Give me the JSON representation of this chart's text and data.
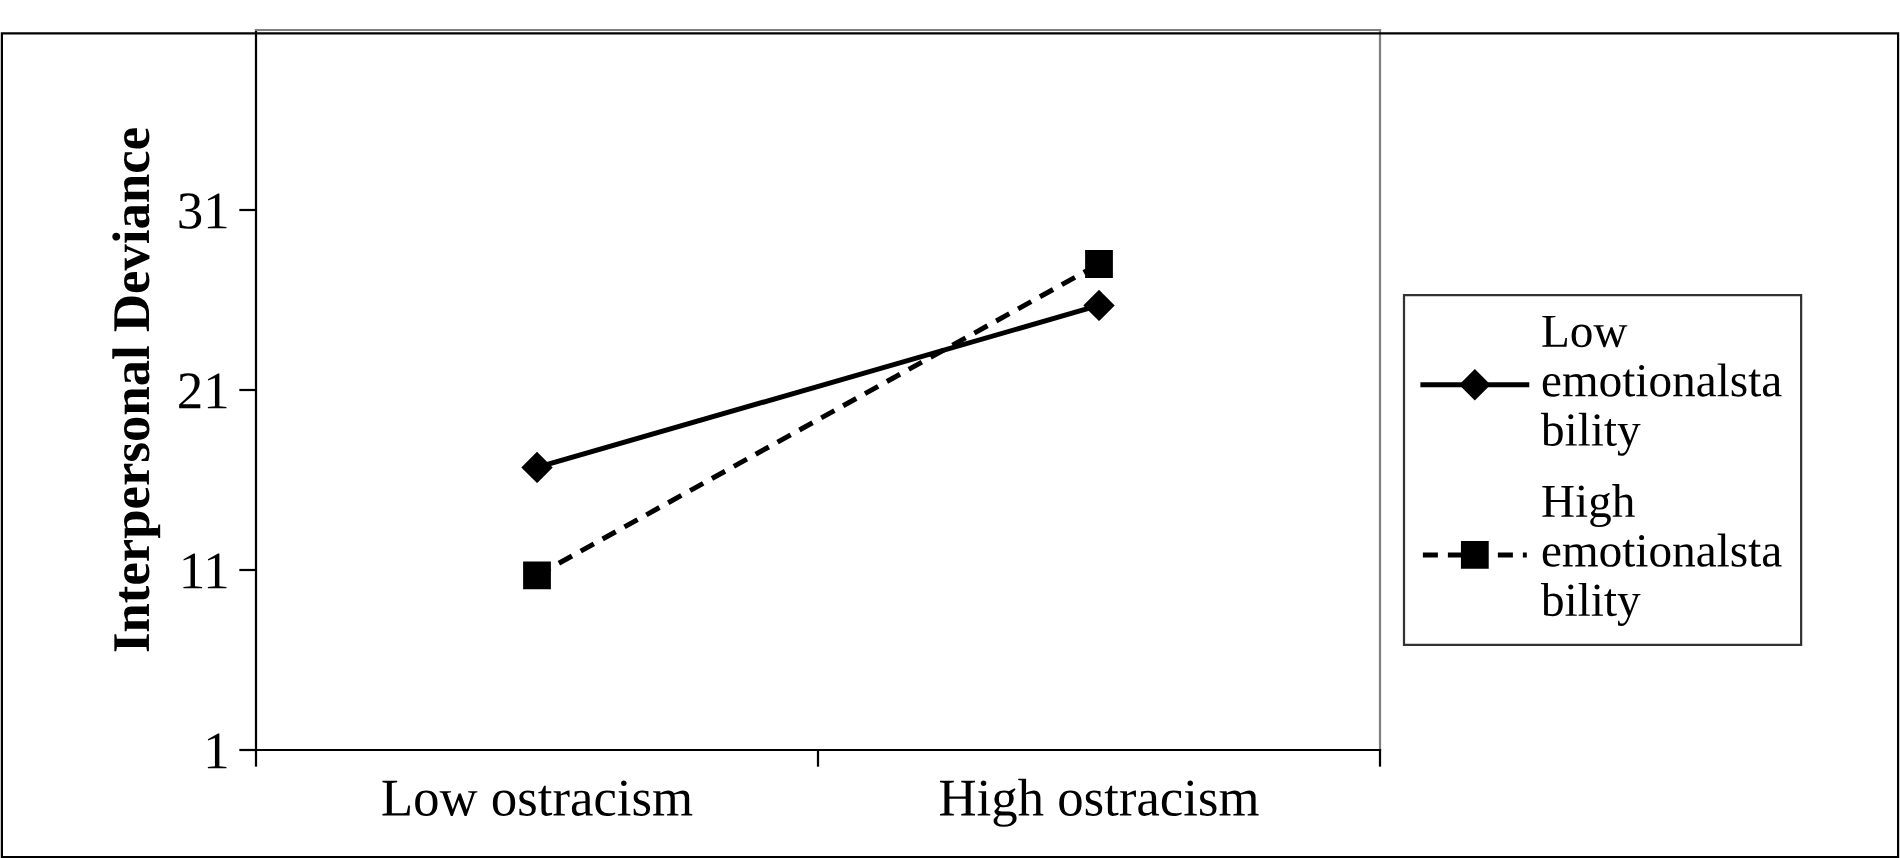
{
  "chart_data": {
    "type": "line",
    "ylabel": "Interpersonal Deviance",
    "categories": [
      "Low ostracism",
      "High ostracism"
    ],
    "series": [
      {
        "name": "Low emotionalsta bility",
        "color": "#000000",
        "values": [
          16.7,
          25.7
        ],
        "marker": "diamond",
        "line_style": "solid"
      },
      {
        "name": "High emotionalsta bility",
        "color": "#000000",
        "values": [
          10.7,
          28.0
        ],
        "marker": "square",
        "line_style": "dashed"
      }
    ],
    "ylim": [
      1,
      41
    ],
    "yticks": [
      1,
      11,
      21,
      31
    ],
    "grid": false,
    "legend": "right"
  }
}
